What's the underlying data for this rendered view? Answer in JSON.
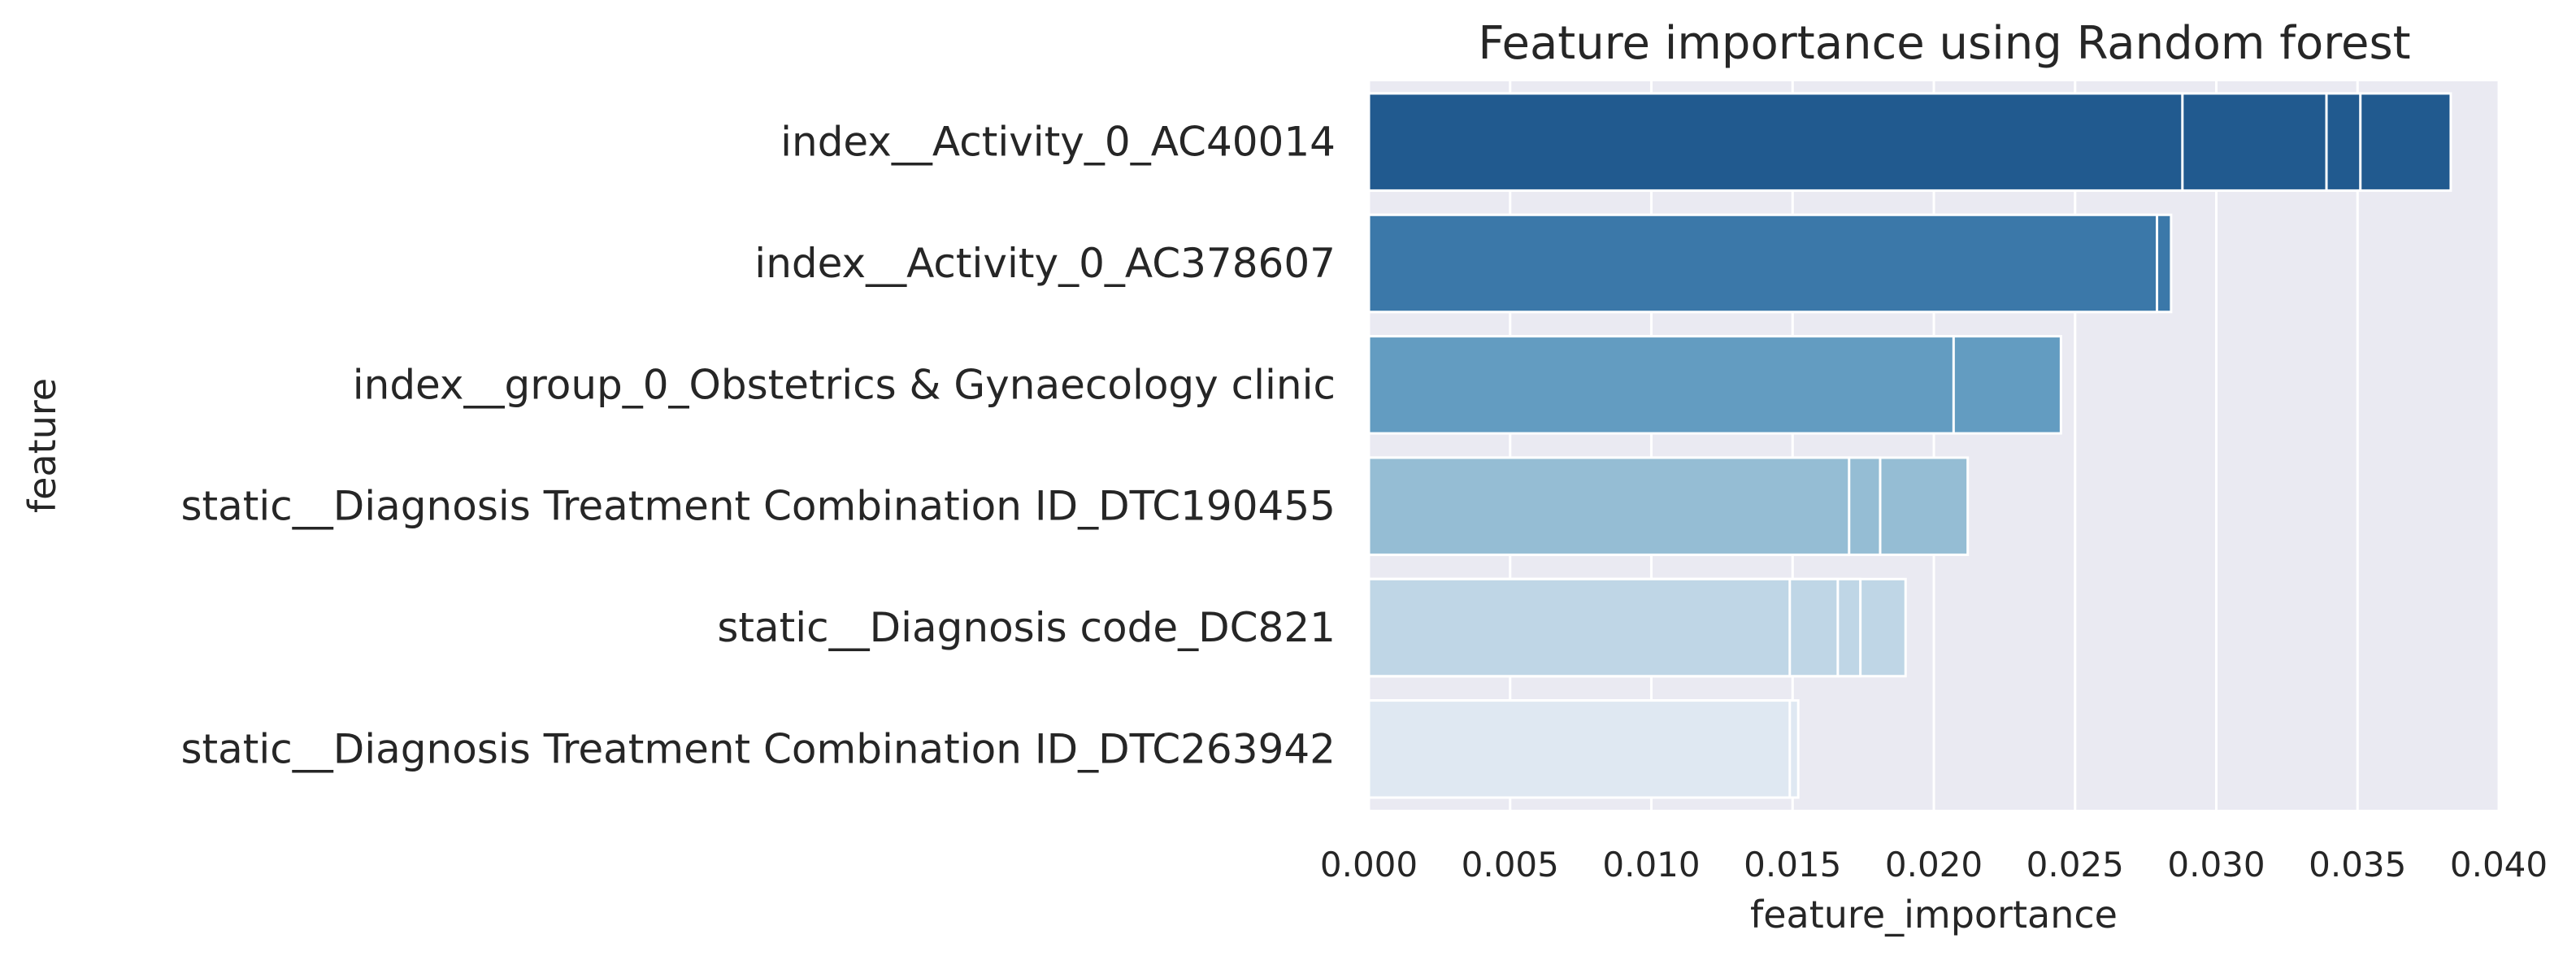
{
  "chart_data": {
    "type": "bar",
    "orientation": "horizontal",
    "title": "Feature importance using Random forest",
    "xlabel": "feature_importance",
    "ylabel": "feature",
    "xlim": [
      0,
      0.04
    ],
    "xticks": [
      "0.000",
      "0.005",
      "0.010",
      "0.015",
      "0.020",
      "0.025",
      "0.030",
      "0.035",
      "0.040"
    ],
    "grid": true,
    "legend": "none",
    "background": "#eaeaf2",
    "categories": [
      "index__Activity_0_AC40014",
      "index__Activity_0_AC378607",
      "index__group_0_Obstetrics & Gynaecology clinic",
      "static__Diagnosis Treatment Combination ID_DTC190455",
      "static__Diagnosis code_DC821",
      "static__Diagnosis Treatment Combination ID_DTC263942"
    ],
    "colors": [
      "#215a8f",
      "#3b78a9",
      "#639cc1",
      "#95bdd4",
      "#bfd6e6",
      "#dfe8f2"
    ],
    "bars": [
      {
        "category": "index__Activity_0_AC40014",
        "values": [
          0.0288,
          0.0339,
          0.0351,
          0.0383
        ]
      },
      {
        "category": "index__Activity_0_AC378607",
        "values": [
          0.0279,
          0.0284
        ]
      },
      {
        "category": "index__group_0_Obstetrics & Gynaecology clinic",
        "values": [
          0.0207,
          0.0245
        ]
      },
      {
        "category": "static__Diagnosis Treatment Combination ID_DTC190455",
        "values": [
          0.017,
          0.0181,
          0.0212
        ]
      },
      {
        "category": "static__Diagnosis code_DC821",
        "values": [
          0.0149,
          0.0166,
          0.0174,
          0.019
        ]
      },
      {
        "category": "static__Diagnosis Treatment Combination ID_DTC263942",
        "values": [
          0.0149,
          0.0152
        ]
      }
    ]
  }
}
